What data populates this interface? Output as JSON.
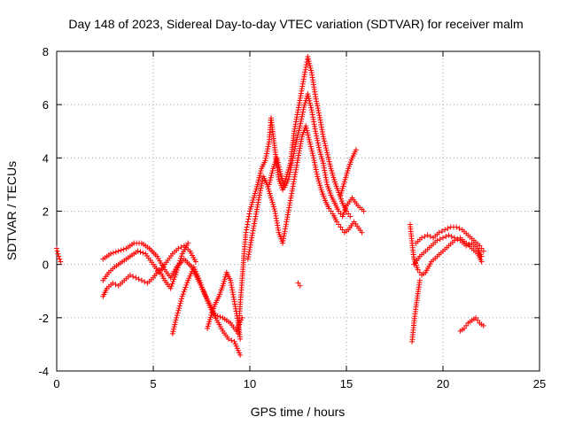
{
  "chart_data": {
    "type": "scatter",
    "title": "Day 148 of 2023, Sidereal Day-to-day VTEC variation (SDTVAR) for receiver malm",
    "xlabel": "GPS time / hours",
    "ylabel": "SDTVAR / TECUs",
    "xlim": [
      0,
      25
    ],
    "ylim": [
      -4,
      8
    ],
    "xticks": [
      0,
      5,
      10,
      15,
      20,
      25
    ],
    "yticks": [
      -4,
      -2,
      0,
      2,
      4,
      6,
      8
    ],
    "xtick_labels": [
      "0",
      "5",
      "10",
      "15",
      "20",
      "25"
    ],
    "ytick_labels": [
      "-4",
      "-2",
      "0",
      "2",
      "4",
      "6",
      "8"
    ],
    "grid": true,
    "marker": "+",
    "color": "#ff0000",
    "series": [
      {
        "name": "SDTVAR",
        "segments": [
          [
            [
              0.0,
              0.6
            ],
            [
              0.1,
              0.3
            ],
            [
              0.2,
              0.1
            ]
          ],
          [
            [
              2.4,
              -1.2
            ],
            [
              2.6,
              -0.9
            ],
            [
              2.9,
              -0.7
            ],
            [
              3.2,
              -0.8
            ],
            [
              3.5,
              -0.6
            ],
            [
              3.8,
              -0.4
            ],
            [
              4.1,
              -0.5
            ],
            [
              4.4,
              -0.6
            ],
            [
              4.7,
              -0.7
            ],
            [
              5.0,
              -0.5
            ],
            [
              5.3,
              -0.2
            ],
            [
              5.6,
              -0.6
            ],
            [
              5.9,
              -0.9
            ],
            [
              6.2,
              -0.3
            ],
            [
              6.5,
              0.4
            ],
            [
              6.8,
              0.8
            ]
          ],
          [
            [
              2.4,
              -0.6
            ],
            [
              2.7,
              -0.3
            ],
            [
              3.0,
              -0.1
            ],
            [
              3.4,
              0.1
            ],
            [
              3.8,
              0.3
            ],
            [
              4.2,
              0.5
            ],
            [
              4.6,
              0.4
            ],
            [
              5.0,
              0.0
            ],
            [
              5.3,
              -0.3
            ],
            [
              5.6,
              0.0
            ],
            [
              6.0,
              0.4
            ],
            [
              6.3,
              0.6
            ],
            [
              6.6,
              0.7
            ],
            [
              6.9,
              0.5
            ],
            [
              7.2,
              0.1
            ]
          ],
          [
            [
              2.4,
              0.2
            ],
            [
              2.8,
              0.4
            ],
            [
              3.2,
              0.5
            ],
            [
              3.6,
              0.6
            ],
            [
              4.0,
              0.8
            ],
            [
              4.4,
              0.8
            ],
            [
              4.8,
              0.6
            ],
            [
              5.2,
              0.3
            ],
            [
              5.6,
              -0.2
            ],
            [
              5.9,
              -0.5
            ],
            [
              6.2,
              -0.1
            ],
            [
              6.6,
              0.2
            ],
            [
              7.0,
              -0.1
            ],
            [
              7.4,
              -0.7
            ],
            [
              7.8,
              -1.3
            ],
            [
              8.2,
              -1.9
            ],
            [
              8.6,
              -2.0
            ],
            [
              9.0,
              -2.2
            ],
            [
              9.3,
              -2.5
            ],
            [
              9.6,
              -2.0
            ]
          ],
          [
            [
              6.0,
              -2.6
            ],
            [
              6.2,
              -2.0
            ],
            [
              6.5,
              -1.2
            ],
            [
              6.8,
              -0.6
            ],
            [
              7.1,
              -0.1
            ],
            [
              7.4,
              -0.6
            ],
            [
              7.7,
              -1.2
            ],
            [
              8.0,
              -1.7
            ],
            [
              8.3,
              -2.1
            ],
            [
              8.6,
              -2.5
            ],
            [
              8.9,
              -2.8
            ],
            [
              9.2,
              -2.9
            ],
            [
              9.5,
              -3.4
            ]
          ],
          [
            [
              7.8,
              -2.4
            ],
            [
              8.0,
              -1.9
            ],
            [
              8.2,
              -1.5
            ],
            [
              8.4,
              -1.2
            ],
            [
              8.6,
              -0.8
            ],
            [
              8.8,
              -0.3
            ],
            [
              9.0,
              -0.6
            ],
            [
              9.2,
              -1.4
            ],
            [
              9.4,
              -2.2
            ],
            [
              9.5,
              -2.8
            ]
          ],
          [
            [
              9.4,
              -2.6
            ],
            [
              9.5,
              -1.5
            ],
            [
              9.6,
              -0.6
            ],
            [
              9.7,
              0.4
            ],
            [
              9.8,
              1.2
            ],
            [
              9.9,
              1.6
            ],
            [
              10.0,
              2.0
            ],
            [
              10.2,
              2.5
            ],
            [
              10.4,
              3.0
            ],
            [
              10.6,
              3.6
            ],
            [
              10.8,
              3.9
            ],
            [
              11.0,
              4.6
            ],
            [
              11.1,
              5.5
            ],
            [
              11.3,
              4.3
            ],
            [
              11.5,
              3.2
            ],
            [
              11.7,
              2.8
            ],
            [
              11.9,
              3.3
            ],
            [
              12.1,
              3.8
            ],
            [
              12.3,
              5.0
            ],
            [
              12.5,
              5.8
            ],
            [
              12.7,
              6.6
            ],
            [
              12.9,
              7.4
            ],
            [
              13.0,
              7.8
            ],
            [
              13.2,
              7.2
            ],
            [
              13.4,
              6.3
            ],
            [
              13.6,
              5.6
            ],
            [
              13.8,
              4.8
            ],
            [
              14.0,
              4.2
            ],
            [
              14.2,
              3.6
            ],
            [
              14.4,
              3.1
            ],
            [
              14.6,
              2.7
            ],
            [
              14.8,
              2.3
            ],
            [
              15.0,
              2.0
            ],
            [
              15.2,
              1.8
            ]
          ],
          [
            [
              9.9,
              0.2
            ],
            [
              10.1,
              1.0
            ],
            [
              10.3,
              1.8
            ],
            [
              10.5,
              2.6
            ],
            [
              10.7,
              3.3
            ],
            [
              10.9,
              3.0
            ],
            [
              11.1,
              2.5
            ],
            [
              11.3,
              2.0
            ],
            [
              11.5,
              1.2
            ],
            [
              11.7,
              0.8
            ],
            [
              11.9,
              1.6
            ],
            [
              12.1,
              2.4
            ],
            [
              12.3,
              3.2
            ],
            [
              12.5,
              4.0
            ],
            [
              12.7,
              4.8
            ],
            [
              12.9,
              5.2
            ],
            [
              13.1,
              4.6
            ],
            [
              13.3,
              4.0
            ],
            [
              13.5,
              3.3
            ],
            [
              13.7,
              2.8
            ],
            [
              13.9,
              2.4
            ],
            [
              14.1,
              2.1
            ],
            [
              14.3,
              1.9
            ],
            [
              14.5,
              1.6
            ],
            [
              14.7,
              1.4
            ],
            [
              14.9,
              1.2
            ],
            [
              15.1,
              1.3
            ],
            [
              15.4,
              1.6
            ],
            [
              15.8,
              1.2
            ]
          ],
          [
            [
              11.0,
              3.0
            ],
            [
              11.2,
              3.6
            ],
            [
              11.4,
              4.0
            ],
            [
              11.6,
              3.4
            ],
            [
              11.8,
              2.9
            ],
            [
              12.0,
              3.2
            ],
            [
              12.2,
              3.9
            ],
            [
              12.4,
              4.6
            ],
            [
              12.6,
              5.2
            ],
            [
              12.8,
              5.9
            ],
            [
              13.0,
              6.4
            ],
            [
              13.2,
              5.8
            ],
            [
              13.4,
              5.0
            ],
            [
              13.6,
              4.3
            ],
            [
              13.8,
              3.8
            ],
            [
              14.0,
              3.0
            ],
            [
              14.2,
              2.6
            ],
            [
              14.4,
              2.3
            ],
            [
              14.6,
              2.0
            ],
            [
              14.8,
              1.8
            ],
            [
              15.0,
              2.2
            ],
            [
              15.3,
              2.5
            ],
            [
              15.6,
              2.2
            ],
            [
              15.9,
              2.0
            ]
          ],
          [
            [
              14.7,
              2.6
            ],
            [
              14.9,
              3.1
            ],
            [
              15.1,
              3.6
            ],
            [
              15.3,
              4.0
            ],
            [
              15.5,
              4.3
            ]
          ],
          [
            [
              12.5,
              -0.7
            ],
            [
              12.6,
              -0.8
            ]
          ],
          [
            [
              18.4,
              -2.9
            ],
            [
              18.5,
              -2.2
            ],
            [
              18.6,
              -1.6
            ],
            [
              18.7,
              -1.1
            ],
            [
              18.8,
              -0.6
            ]
          ],
          [
            [
              18.3,
              1.5
            ],
            [
              18.4,
              0.8
            ],
            [
              18.5,
              0.2
            ],
            [
              18.7,
              -0.2
            ],
            [
              18.9,
              -0.4
            ],
            [
              19.1,
              -0.3
            ],
            [
              19.4,
              0.1
            ],
            [
              19.7,
              0.3
            ],
            [
              20.0,
              0.5
            ],
            [
              20.3,
              0.7
            ],
            [
              20.6,
              0.9
            ],
            [
              20.9,
              1.0
            ],
            [
              21.2,
              0.8
            ],
            [
              21.5,
              0.6
            ],
            [
              21.8,
              0.4
            ],
            [
              22.0,
              0.1
            ]
          ],
          [
            [
              18.5,
              0.0
            ],
            [
              18.8,
              0.3
            ],
            [
              19.1,
              0.5
            ],
            [
              19.4,
              0.7
            ],
            [
              19.7,
              0.9
            ],
            [
              20.0,
              1.0
            ],
            [
              20.3,
              1.1
            ],
            [
              20.6,
              1.0
            ],
            [
              20.9,
              0.9
            ],
            [
              21.2,
              0.7
            ],
            [
              21.5,
              0.8
            ],
            [
              21.8,
              0.6
            ],
            [
              22.0,
              0.3
            ]
          ],
          [
            [
              18.6,
              0.8
            ],
            [
              18.9,
              1.0
            ],
            [
              19.2,
              1.1
            ],
            [
              19.5,
              1.0
            ],
            [
              19.8,
              1.2
            ],
            [
              20.1,
              1.3
            ],
            [
              20.4,
              1.4
            ],
            [
              20.7,
              1.4
            ],
            [
              21.0,
              1.3
            ],
            [
              21.3,
              1.1
            ],
            [
              21.6,
              0.9
            ],
            [
              21.9,
              0.7
            ],
            [
              22.1,
              0.5
            ]
          ],
          [
            [
              20.9,
              -2.5
            ],
            [
              21.1,
              -2.4
            ],
            [
              21.3,
              -2.2
            ],
            [
              21.5,
              -2.1
            ],
            [
              21.7,
              -2.0
            ],
            [
              21.9,
              -2.2
            ],
            [
              22.1,
              -2.3
            ]
          ]
        ]
      }
    ]
  }
}
